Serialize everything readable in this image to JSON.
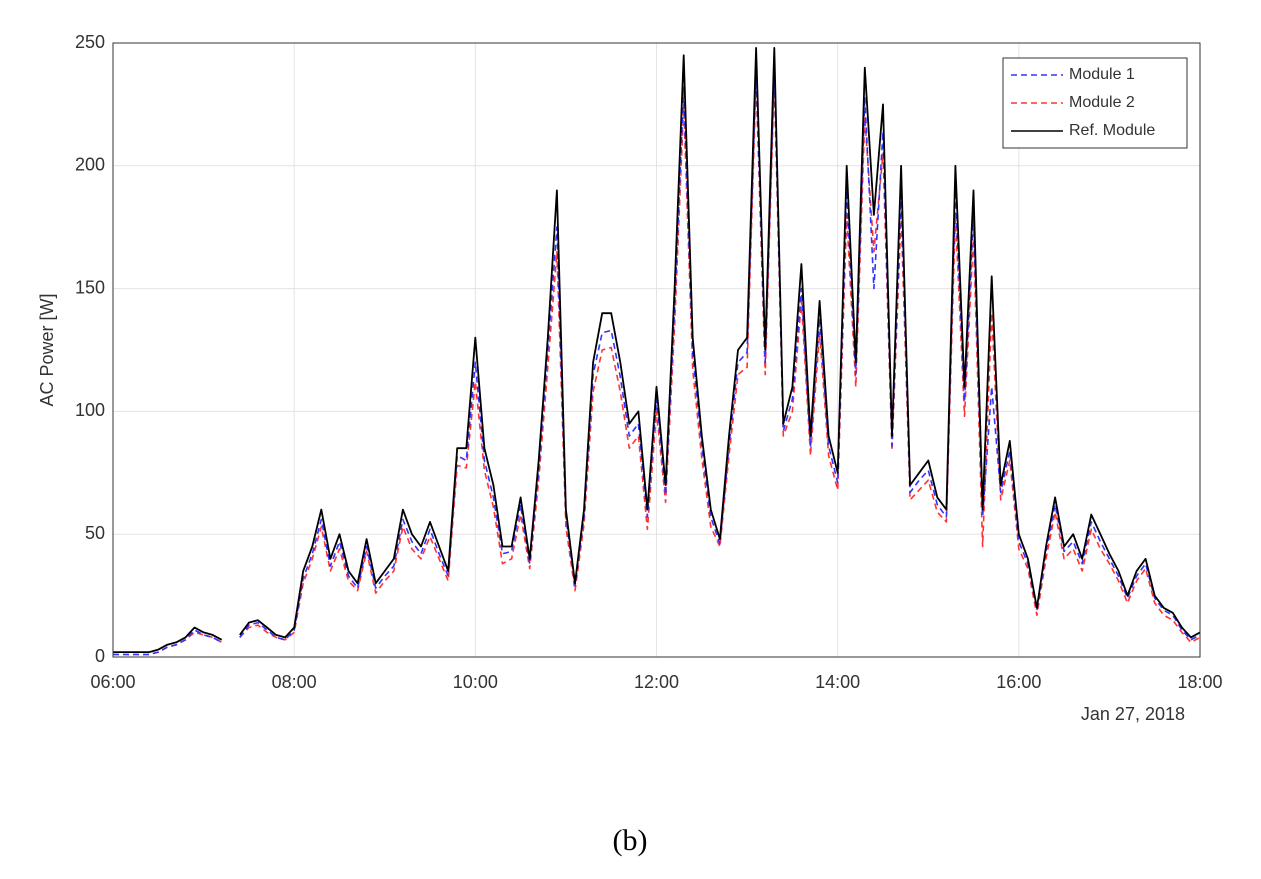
{
  "chart_data": {
    "type": "line",
    "y_label": "AC Power [W]",
    "x_axis_date": "Jan 27, 2018",
    "caption": "(b)",
    "grid": true,
    "legend": "upper right",
    "xlim": [
      6,
      18
    ],
    "xticks": [
      {
        "value": 6,
        "label": "06:00"
      },
      {
        "value": 8,
        "label": "08:00"
      },
      {
        "value": 10,
        "label": "10:00"
      },
      {
        "value": 12,
        "label": "12:00"
      },
      {
        "value": 14,
        "label": "14:00"
      },
      {
        "value": 16,
        "label": "16:00"
      },
      {
        "value": 18,
        "label": "18:00"
      }
    ],
    "ylim": [
      0,
      250
    ],
    "yticks": [
      0,
      50,
      100,
      150,
      200,
      250
    ],
    "x": [
      6.0,
      6.1,
      6.2,
      6.3,
      6.4,
      6.5,
      6.6,
      6.7,
      6.8,
      6.9,
      7.0,
      7.1,
      7.2,
      7.3,
      7.4,
      7.5,
      7.6,
      7.7,
      7.8,
      7.9,
      8.0,
      8.1,
      8.2,
      8.3,
      8.4,
      8.5,
      8.6,
      8.7,
      8.8,
      8.9,
      9.0,
      9.1,
      9.2,
      9.3,
      9.4,
      9.5,
      9.6,
      9.7,
      9.8,
      9.9,
      10.0,
      10.1,
      10.2,
      10.3,
      10.4,
      10.5,
      10.6,
      10.7,
      10.8,
      10.9,
      11.0,
      11.1,
      11.2,
      11.3,
      11.4,
      11.5,
      11.6,
      11.7,
      11.8,
      11.9,
      12.0,
      12.1,
      12.2,
      12.3,
      12.4,
      12.5,
      12.6,
      12.7,
      12.8,
      12.9,
      13.0,
      13.1,
      13.2,
      13.3,
      13.4,
      13.5,
      13.6,
      13.7,
      13.8,
      13.9,
      14.0,
      14.1,
      14.2,
      14.3,
      14.4,
      14.5,
      14.6,
      14.7,
      14.8,
      14.9,
      15.0,
      15.1,
      15.2,
      15.3,
      15.4,
      15.5,
      15.6,
      15.7,
      15.8,
      15.9,
      16.0,
      16.1,
      16.2,
      16.3,
      16.4,
      16.5,
      16.6,
      16.7,
      16.8,
      16.9,
      17.0,
      17.1,
      17.2,
      17.3,
      17.4,
      17.5,
      17.6,
      17.7,
      17.8,
      17.9,
      18.0
    ],
    "series": [
      {
        "name": "Module 1",
        "color": "#3333ff",
        "dash": true,
        "values": [
          1,
          1,
          1,
          1,
          1,
          2,
          4,
          5,
          7,
          11,
          9,
          8,
          6,
          null,
          8,
          13,
          14,
          11,
          8,
          7,
          11,
          32,
          42,
          56,
          37,
          47,
          33,
          28,
          45,
          28,
          33,
          37,
          56,
          47,
          42,
          52,
          42,
          33,
          82,
          80,
          120,
          80,
          65,
          42,
          43,
          62,
          38,
          76,
          125,
          175,
          57,
          29,
          57,
          115,
          132,
          133,
          114,
          90,
          95,
          57,
          105,
          66,
          142,
          232,
          124,
          86,
          57,
          46,
          86,
          120,
          124,
          240,
          120,
          240,
          92,
          105,
          150,
          86,
          138,
          86,
          71,
          190,
          115,
          228,
          150,
          214,
          86,
          190,
          67,
          72,
          76,
          62,
          57,
          190,
          104,
          180,
          57,
          110,
          67,
          84,
          47,
          38,
          19,
          43,
          62,
          43,
          47,
          38,
          55,
          47,
          40,
          33,
          24,
          33,
          38,
          24,
          19,
          17,
          11,
          7,
          9
        ]
      },
      {
        "name": "Module 2",
        "color": "#ff3333",
        "dash": true,
        "values": [
          1,
          1,
          1,
          1,
          1,
          2,
          4,
          5,
          7,
          10,
          9,
          8,
          6,
          null,
          8,
          12,
          13,
          10,
          8,
          7,
          10,
          30,
          40,
          53,
          35,
          44,
          31,
          27,
          43,
          26,
          31,
          35,
          53,
          44,
          40,
          49,
          40,
          31,
          78,
          77,
          112,
          76,
          61,
          38,
          40,
          58,
          36,
          72,
          118,
          165,
          53,
          27,
          54,
          108,
          125,
          126,
          108,
          85,
          90,
          52,
          100,
          63,
          135,
          225,
          117,
          81,
          53,
          45,
          82,
          115,
          118,
          235,
          115,
          235,
          90,
          100,
          145,
          82,
          132,
          82,
          68,
          180,
          110,
          220,
          165,
          205,
          84,
          180,
          64,
          68,
          72,
          59,
          55,
          180,
          98,
          172,
          45,
          140,
          64,
          80,
          44,
          36,
          17,
          40,
          59,
          40,
          44,
          35,
          52,
          44,
          38,
          31,
          22,
          31,
          36,
          22,
          17,
          15,
          10,
          6,
          8
        ]
      },
      {
        "name": "Ref. Module",
        "color": "#000000",
        "dash": false,
        "values": [
          2,
          2,
          2,
          2,
          2,
          3,
          5,
          6,
          8,
          12,
          10,
          9,
          7,
          null,
          9,
          14,
          15,
          12,
          9,
          8,
          12,
          35,
          45,
          60,
          40,
          50,
          35,
          30,
          48,
          30,
          35,
          40,
          60,
          50,
          45,
          55,
          45,
          35,
          85,
          85,
          130,
          85,
          70,
          45,
          45,
          65,
          40,
          80,
          130,
          190,
          60,
          30,
          60,
          120,
          140,
          140,
          120,
          95,
          100,
          60,
          110,
          70,
          150,
          245,
          130,
          90,
          60,
          48,
          90,
          125,
          130,
          248,
          125,
          248,
          95,
          110,
          160,
          90,
          145,
          90,
          75,
          200,
          120,
          240,
          180,
          225,
          90,
          200,
          70,
          75,
          80,
          65,
          60,
          200,
          110,
          190,
          60,
          155,
          70,
          88,
          50,
          40,
          20,
          45,
          65,
          45,
          50,
          40,
          58,
          50,
          42,
          35,
          25,
          35,
          40,
          25,
          20,
          18,
          12,
          8,
          10
        ]
      }
    ]
  }
}
